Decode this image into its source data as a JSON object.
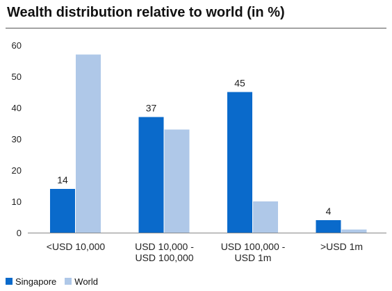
{
  "chart_data": {
    "type": "bar",
    "title": "Wealth distribution relative to world (in %)",
    "categories": [
      [
        "<USD 10,000"
      ],
      [
        "USD 10,000 -",
        "USD 100,000"
      ],
      [
        "USD 100,000 -",
        "USD 1m"
      ],
      [
        ">USD 1m"
      ]
    ],
    "series": [
      {
        "name": "Singapore",
        "color": "#0A6ACB",
        "values": [
          14,
          37,
          45,
          4
        ]
      },
      {
        "name": "World",
        "color": "#AFC8E8",
        "values": [
          57,
          33,
          10,
          1
        ]
      }
    ],
    "data_labels": {
      "series_index": 0,
      "labels": [
        "14",
        "37",
        "45",
        "4"
      ]
    },
    "ylim": [
      0,
      60
    ],
    "yticks": [
      0,
      10,
      20,
      30,
      40,
      50,
      60
    ],
    "xlabel": "",
    "ylabel": "",
    "grid": false,
    "legend_position": "bottom-left"
  }
}
